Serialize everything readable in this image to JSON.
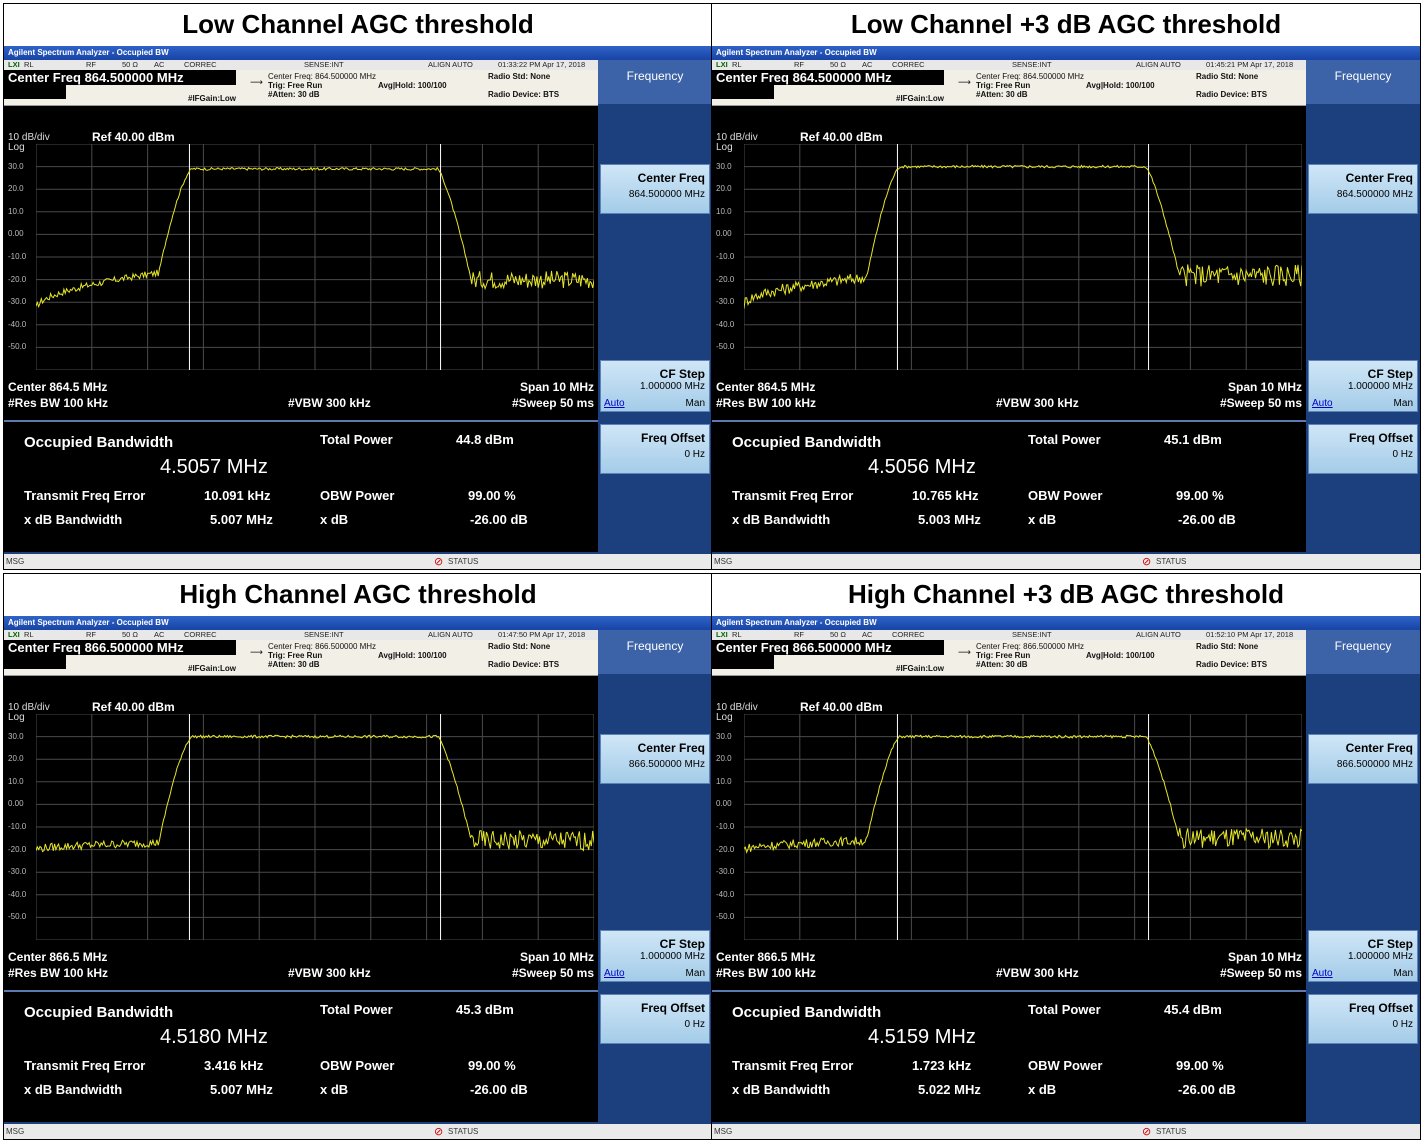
{
  "panels": [
    {
      "title": "Low Channel AGC threshold",
      "window_title": "Agilent Spectrum Analyzer - Occupied BW",
      "status": {
        "rl": "RL",
        "rf": "RF",
        "ohm": "50 Ω",
        "ac": "AC",
        "correc": "CORREC",
        "sense": "SENSE:INT",
        "align": "ALIGN AUTO",
        "time": "01:33:22 PM Apr 17, 2018"
      },
      "center_freq_label": "Center Freq  864.500000 MHz",
      "info": {
        "cf": "Center Freq: 864.500000 MHz",
        "trig": "Trig: Free Run",
        "avg": "Avg|Hold: 100/100",
        "ifgain": "#IFGain:Low",
        "atten": "#Atten: 30 dB",
        "radio_std": "Radio Std: None",
        "radio_dev": "Radio Device: BTS"
      },
      "scale": {
        "div": "10 dB/div",
        "ref": "Ref 40.00 dBm",
        "log": "Log"
      },
      "y_ticks": [
        "30.0",
        "20.0",
        "10.0",
        "0.00",
        "-10.0",
        "-20.0",
        "-30.0",
        "-40.0",
        "-50.0"
      ],
      "bottom": {
        "center": "Center  864.5 MHz",
        "span": "Span 10 MHz",
        "rbw": "#Res BW  100 kHz",
        "vbw": "#VBW  300 kHz",
        "sweep": "#Sweep  50 ms"
      },
      "meas": {
        "obw_label": "Occupied Bandwidth",
        "obw_value": "4.5057 MHz",
        "tp_label": "Total Power",
        "tp_value": "44.8 dBm",
        "tfe_label": "Transmit Freq Error",
        "tfe_value": "10.091 kHz",
        "obwp_label": "OBW Power",
        "obwp_value": "99.00 %",
        "xdbbw_label": "x dB Bandwidth",
        "xdbbw_value": "5.007 MHz",
        "xdb_label": "x dB",
        "xdb_value": "-26.00 dB"
      },
      "msg": {
        "msg": "MSG",
        "status": "STATUS"
      },
      "softkeys": {
        "header": "Frequency",
        "center_freq": "Center Freq",
        "center_freq_val": "864.500000 MHz",
        "cf_step": "CF Step",
        "cf_step_val": "1.000000 MHz",
        "auto": "Auto",
        "man": "Man",
        "freq_offset": "Freq Offset",
        "freq_offset_val": "0 Hz"
      },
      "trace": {
        "left_floor_start": -33,
        "left_floor_end": -17,
        "plateau": 29,
        "right_floor": -20,
        "noise_left": 1.5,
        "noise_right": 4
      }
    },
    {
      "title": "Low Channel +3 dB AGC threshold",
      "window_title": "Agilent Spectrum Analyzer - Occupied BW",
      "status": {
        "rl": "RL",
        "rf": "RF",
        "ohm": "50 Ω",
        "ac": "AC",
        "correc": "CORREC",
        "sense": "SENSE:INT",
        "align": "ALIGN AUTO",
        "time": "01:45:21 PM Apr 17, 2018"
      },
      "center_freq_label": "Center Freq  864.500000 MHz",
      "info": {
        "cf": "Center Freq: 864.500000 MHz",
        "trig": "Trig: Free Run",
        "avg": "Avg|Hold: 100/100",
        "ifgain": "#IFGain:Low",
        "atten": "#Atten: 30 dB",
        "radio_std": "Radio Std: None",
        "radio_dev": "Radio Device: BTS"
      },
      "scale": {
        "div": "10 dB/div",
        "ref": "Ref 40.00 dBm",
        "log": "Log"
      },
      "y_ticks": [
        "30.0",
        "20.0",
        "10.0",
        "0.00",
        "-10.0",
        "-20.0",
        "-30.0",
        "-40.0",
        "-50.0"
      ],
      "bottom": {
        "center": "Center  864.5 MHz",
        "span": "Span 10 MHz",
        "rbw": "#Res BW  100 kHz",
        "vbw": "#VBW  300 kHz",
        "sweep": "#Sweep  50 ms"
      },
      "meas": {
        "obw_label": "Occupied Bandwidth",
        "obw_value": "4.5056 MHz",
        "tp_label": "Total Power",
        "tp_value": "45.1 dBm",
        "tfe_label": "Transmit Freq Error",
        "tfe_value": "10.765 kHz",
        "obwp_label": "OBW Power",
        "obwp_value": "99.00 %",
        "xdbbw_label": "x dB Bandwidth",
        "xdbbw_value": "5.003 MHz",
        "xdb_label": "x dB",
        "xdb_value": "-26.00 dB"
      },
      "msg": {
        "msg": "MSG",
        "status": "STATUS"
      },
      "softkeys": {
        "header": "Frequency",
        "center_freq": "Center Freq",
        "center_freq_val": "864.500000 MHz",
        "cf_step": "CF Step",
        "cf_step_val": "1.000000 MHz",
        "auto": "Auto",
        "man": "Man",
        "freq_offset": "Freq Offset",
        "freq_offset_val": "0 Hz"
      },
      "trace": {
        "left_floor_start": -31,
        "left_floor_end": -19,
        "plateau": 30,
        "right_floor": -18,
        "noise_left": 2.5,
        "noise_right": 5
      }
    },
    {
      "title": "High Channel AGC threshold",
      "window_title": "Agilent Spectrum Analyzer - Occupied BW",
      "status": {
        "rl": "RL",
        "rf": "RF",
        "ohm": "50 Ω",
        "ac": "AC",
        "correc": "CORREC",
        "sense": "SENSE:INT",
        "align": "ALIGN AUTO",
        "time": "01:47:50 PM Apr 17, 2018"
      },
      "center_freq_label": "Center Freq  866.500000 MHz",
      "info": {
        "cf": "Center Freq: 866.500000 MHz",
        "trig": "Trig: Free Run",
        "avg": "Avg|Hold: 100/100",
        "ifgain": "#IFGain:Low",
        "atten": "#Atten: 30 dB",
        "radio_std": "Radio Std: None",
        "radio_dev": "Radio Device: BTS"
      },
      "scale": {
        "div": "10 dB/div",
        "ref": "Ref 40.00 dBm",
        "log": "Log"
      },
      "y_ticks": [
        "30.0",
        "20.0",
        "10.0",
        "0.00",
        "-10.0",
        "-20.0",
        "-30.0",
        "-40.0",
        "-50.0"
      ],
      "bottom": {
        "center": "Center  866.5 MHz",
        "span": "Span 10 MHz",
        "rbw": "#Res BW  100 kHz",
        "vbw": "#VBW  300 kHz",
        "sweep": "#Sweep  50 ms"
      },
      "meas": {
        "obw_label": "Occupied Bandwidth",
        "obw_value": "4.5180 MHz",
        "tp_label": "Total Power",
        "tp_value": "45.3 dBm",
        "tfe_label": "Transmit Freq Error",
        "tfe_value": "3.416 kHz",
        "obwp_label": "OBW Power",
        "obwp_value": "99.00 %",
        "xdbbw_label": "x dB Bandwidth",
        "xdbbw_value": "5.007 MHz",
        "xdb_label": "x dB",
        "xdb_value": "-26.00 dB"
      },
      "msg": {
        "msg": "MSG",
        "status": "STATUS"
      },
      "softkeys": {
        "header": "Frequency",
        "center_freq": "Center Freq",
        "center_freq_val": "866.500000 MHz",
        "cf_step": "CF Step",
        "cf_step_val": "1.000000 MHz",
        "auto": "Auto",
        "man": "Man",
        "freq_offset": "Freq Offset",
        "freq_offset_val": "0 Hz"
      },
      "trace": {
        "left_floor_start": -20,
        "left_floor_end": -17,
        "plateau": 30,
        "right_floor": -16,
        "noise_left": 1.8,
        "noise_right": 4.5
      }
    },
    {
      "title": "High Channel +3 dB AGC threshold",
      "window_title": "Agilent Spectrum Analyzer - Occupied BW",
      "status": {
        "rl": "RL",
        "rf": "RF",
        "ohm": "50 Ω",
        "ac": "AC",
        "correc": "CORREC",
        "sense": "SENSE:INT",
        "align": "ALIGN AUTO",
        "time": "01:52:10 PM Apr 17, 2018"
      },
      "center_freq_label": "Center Freq  866.500000 MHz",
      "info": {
        "cf": "Center Freq: 866.500000 MHz",
        "trig": "Trig: Free Run",
        "avg": "Avg|Hold: 100/100",
        "ifgain": "#IFGain:Low",
        "atten": "#Atten: 30 dB",
        "radio_std": "Radio Std: None",
        "radio_dev": "Radio Device: BTS"
      },
      "scale": {
        "div": "10 dB/div",
        "ref": "Ref 40.00 dBm",
        "log": "Log"
      },
      "y_ticks": [
        "30.0",
        "20.0",
        "10.0",
        "0.00",
        "-10.0",
        "-20.0",
        "-30.0",
        "-40.0",
        "-50.0"
      ],
      "bottom": {
        "center": "Center  866.5 MHz",
        "span": "Span 10 MHz",
        "rbw": "#Res BW  100 kHz",
        "vbw": "#VBW  300 kHz",
        "sweep": "#Sweep  50 ms"
      },
      "meas": {
        "obw_label": "Occupied Bandwidth",
        "obw_value": "4.5159 MHz",
        "tp_label": "Total Power",
        "tp_value": "45.4 dBm",
        "tfe_label": "Transmit Freq Error",
        "tfe_value": "1.723 kHz",
        "obwp_label": "OBW Power",
        "obwp_value": "99.00 %",
        "xdbbw_label": "x dB Bandwidth",
        "xdbbw_value": "5.022 MHz",
        "xdb_label": "x dB",
        "xdb_value": "-26.00 dB"
      },
      "msg": {
        "msg": "MSG",
        "status": "STATUS"
      },
      "softkeys": {
        "header": "Frequency",
        "center_freq": "Center Freq",
        "center_freq_val": "866.500000 MHz",
        "cf_step": "CF Step",
        "cf_step_val": "1.000000 MHz",
        "auto": "Auto",
        "man": "Man",
        "freq_offset": "Freq Offset",
        "freq_offset_val": "0 Hz"
      },
      "trace": {
        "left_floor_start": -20,
        "left_floor_end": -16,
        "plateau": 30,
        "right_floor": -15,
        "noise_left": 2,
        "noise_right": 4.5
      }
    }
  ],
  "colors": {
    "trace": "#e6e628",
    "screen_bg": "#000000",
    "grid": "#4a4a4a",
    "window_bg": "#1c3f7e",
    "softkey": "#b3d5ee"
  }
}
